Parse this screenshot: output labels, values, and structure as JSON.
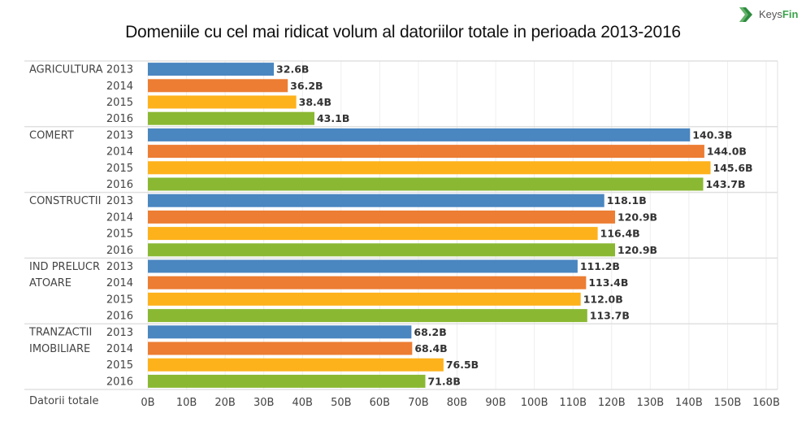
{
  "header": {
    "title": "Domeniile cu cel mai ridicat volum al datoriilor totale in perioada 2013-2016",
    "logo": {
      "icon": "chevron-logo-icon",
      "text_main": "Keys",
      "text_accent": "Fin",
      "accent_color": "#3aa34a"
    }
  },
  "chart_data": {
    "type": "bar",
    "orientation": "horizontal",
    "title": "Domeniile cu cel mai ridicat volum al datoriilor totale in perioada 2013-2016",
    "xlabel": "Datorii totale",
    "ylabel": "",
    "xlim": [
      0,
      160
    ],
    "unit_suffix": "B",
    "grid": true,
    "x_ticks": [
      "0B",
      "10B",
      "20B",
      "30B",
      "40B",
      "50B",
      "60B",
      "70B",
      "80B",
      "90B",
      "100B",
      "110B",
      "120B",
      "130B",
      "140B",
      "150B",
      "160B"
    ],
    "x_tick_values": [
      0,
      10,
      20,
      30,
      40,
      50,
      60,
      70,
      80,
      90,
      100,
      110,
      120,
      130,
      140,
      150,
      160
    ],
    "years": [
      "2013",
      "2014",
      "2015",
      "2016"
    ],
    "year_colors": {
      "2013": "#4a86c0",
      "2014": "#ec7d33",
      "2015": "#fdb21c",
      "2016": "#8ab833"
    },
    "groups": [
      {
        "category": "AGRICULTURA",
        "label_lines": [
          "AGRICULTURA"
        ],
        "values": [
          32.6,
          36.2,
          38.4,
          43.1
        ],
        "labels": [
          "32.6B",
          "36.2B",
          "38.4B",
          "43.1B"
        ]
      },
      {
        "category": "COMERT",
        "label_lines": [
          "COMERT"
        ],
        "values": [
          140.3,
          144.0,
          145.6,
          143.7
        ],
        "labels": [
          "140.3B",
          "144.0B",
          "145.6B",
          "143.7B"
        ]
      },
      {
        "category": "CONSTRUCTII",
        "label_lines": [
          "CONSTRUCTII"
        ],
        "values": [
          118.1,
          120.9,
          116.4,
          120.9
        ],
        "labels": [
          "118.1B",
          "120.9B",
          "116.4B",
          "120.9B"
        ]
      },
      {
        "category": "IND PRELUCRATOARE",
        "label_lines": [
          "IND PRELUCR",
          "ATOARE"
        ],
        "values": [
          111.2,
          113.4,
          112.0,
          113.7
        ],
        "labels": [
          "111.2B",
          "113.4B",
          "112.0B",
          "113.7B"
        ]
      },
      {
        "category": "TRANZACTII IMOBILIARE",
        "label_lines": [
          "TRANZACTII",
          "IMOBILIARE"
        ],
        "values": [
          68.2,
          68.4,
          76.5,
          71.8
        ],
        "labels": [
          "68.2B",
          "68.4B",
          "76.5B",
          "71.8B"
        ]
      }
    ]
  }
}
